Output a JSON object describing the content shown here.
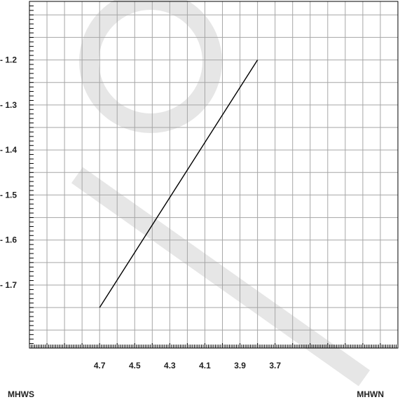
{
  "chart_data": {
    "type": "line",
    "x_axis_reversed": true,
    "xlim": [
      5.1,
      3.0
    ],
    "ylim": [
      -1.84,
      -1.07
    ],
    "x_ticks": [
      4.7,
      4.5,
      4.3,
      4.1,
      3.9,
      3.7
    ],
    "x_tick_labels": [
      "4.7",
      "4.5",
      "4.3",
      "4.1",
      "3.9",
      "3.7"
    ],
    "y_ticks": [
      -1.2,
      -1.3,
      -1.4,
      -1.5,
      -1.6,
      -1.7
    ],
    "y_tick_labels": [
      "- 1.2",
      "- 1.3",
      "- 1.4",
      "- 1.5",
      "- 1.6",
      "- 1.7"
    ],
    "x_left_label": "MHWS",
    "x_right_label": "MHWN",
    "grid": true,
    "series": [
      {
        "x": [
          4.7,
          3.8
        ],
        "y": [
          -1.75,
          -1.2
        ]
      }
    ],
    "line_color": "#000000",
    "grid_color": "#a6a6a6",
    "frame_color": "#000000"
  }
}
